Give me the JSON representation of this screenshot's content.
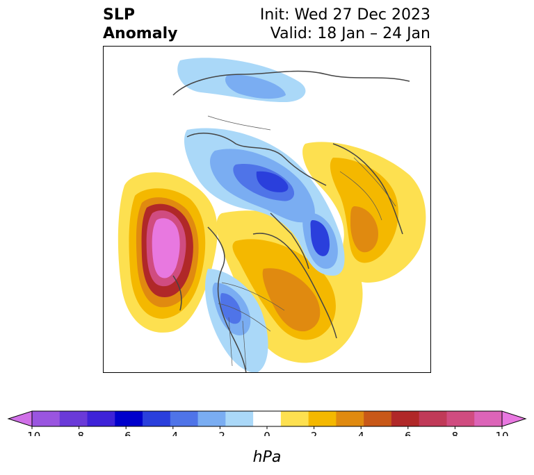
{
  "title": {
    "left_line1": "SLP",
    "left_line2": "Anomaly",
    "right_line1": "Init: Wed 27 Dec 2023",
    "right_line2": "Valid: 18 Jan – 24 Jan"
  },
  "colorbar": {
    "unit_label": "hPa",
    "tick_labels": [
      "-10",
      "-8",
      "-6",
      "-4",
      "-2",
      "0",
      "2",
      "4",
      "6",
      "8",
      "10"
    ],
    "colors": [
      "#d070e8",
      "#9a55e0",
      "#6a3ad8",
      "#3e22d8",
      "#0000cc",
      "#2a3fdc",
      "#4f74e8",
      "#7aadf2",
      "#aad8f8",
      "#ffffff",
      "#fde050",
      "#f4b800",
      "#e08a10",
      "#c85818",
      "#b02828",
      "#c03a58",
      "#d04c80",
      "#dc64b8",
      "#e878e0"
    ],
    "range": [
      -10,
      10
    ],
    "extend": "both"
  },
  "map": {
    "field": "sea level pressure anomaly",
    "colors": {
      "strong_positive": "#e878e0",
      "positive": "#f4b800",
      "negative": "#7aadf2",
      "strong_negative": "#2a3fdc",
      "coastline": "#444444"
    }
  }
}
